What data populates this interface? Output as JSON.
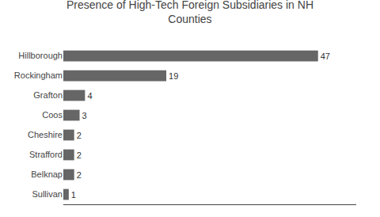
{
  "chart_data": {
    "type": "bar",
    "orientation": "horizontal",
    "title": "Presence of High-Tech Foreign Subsidiaries in NH\nCounties",
    "categories": [
      "Sullivan",
      "Belknap",
      "Strafford",
      "Cheshire",
      "Coos",
      "Grafton",
      "Rockingham",
      "Hillborough"
    ],
    "values": [
      1,
      2,
      2,
      2,
      3,
      4,
      19,
      47
    ],
    "color": "#666666",
    "xlim": [
      0,
      54.05
    ],
    "grid": false,
    "data_labels": true,
    "tick_labels": "y"
  }
}
